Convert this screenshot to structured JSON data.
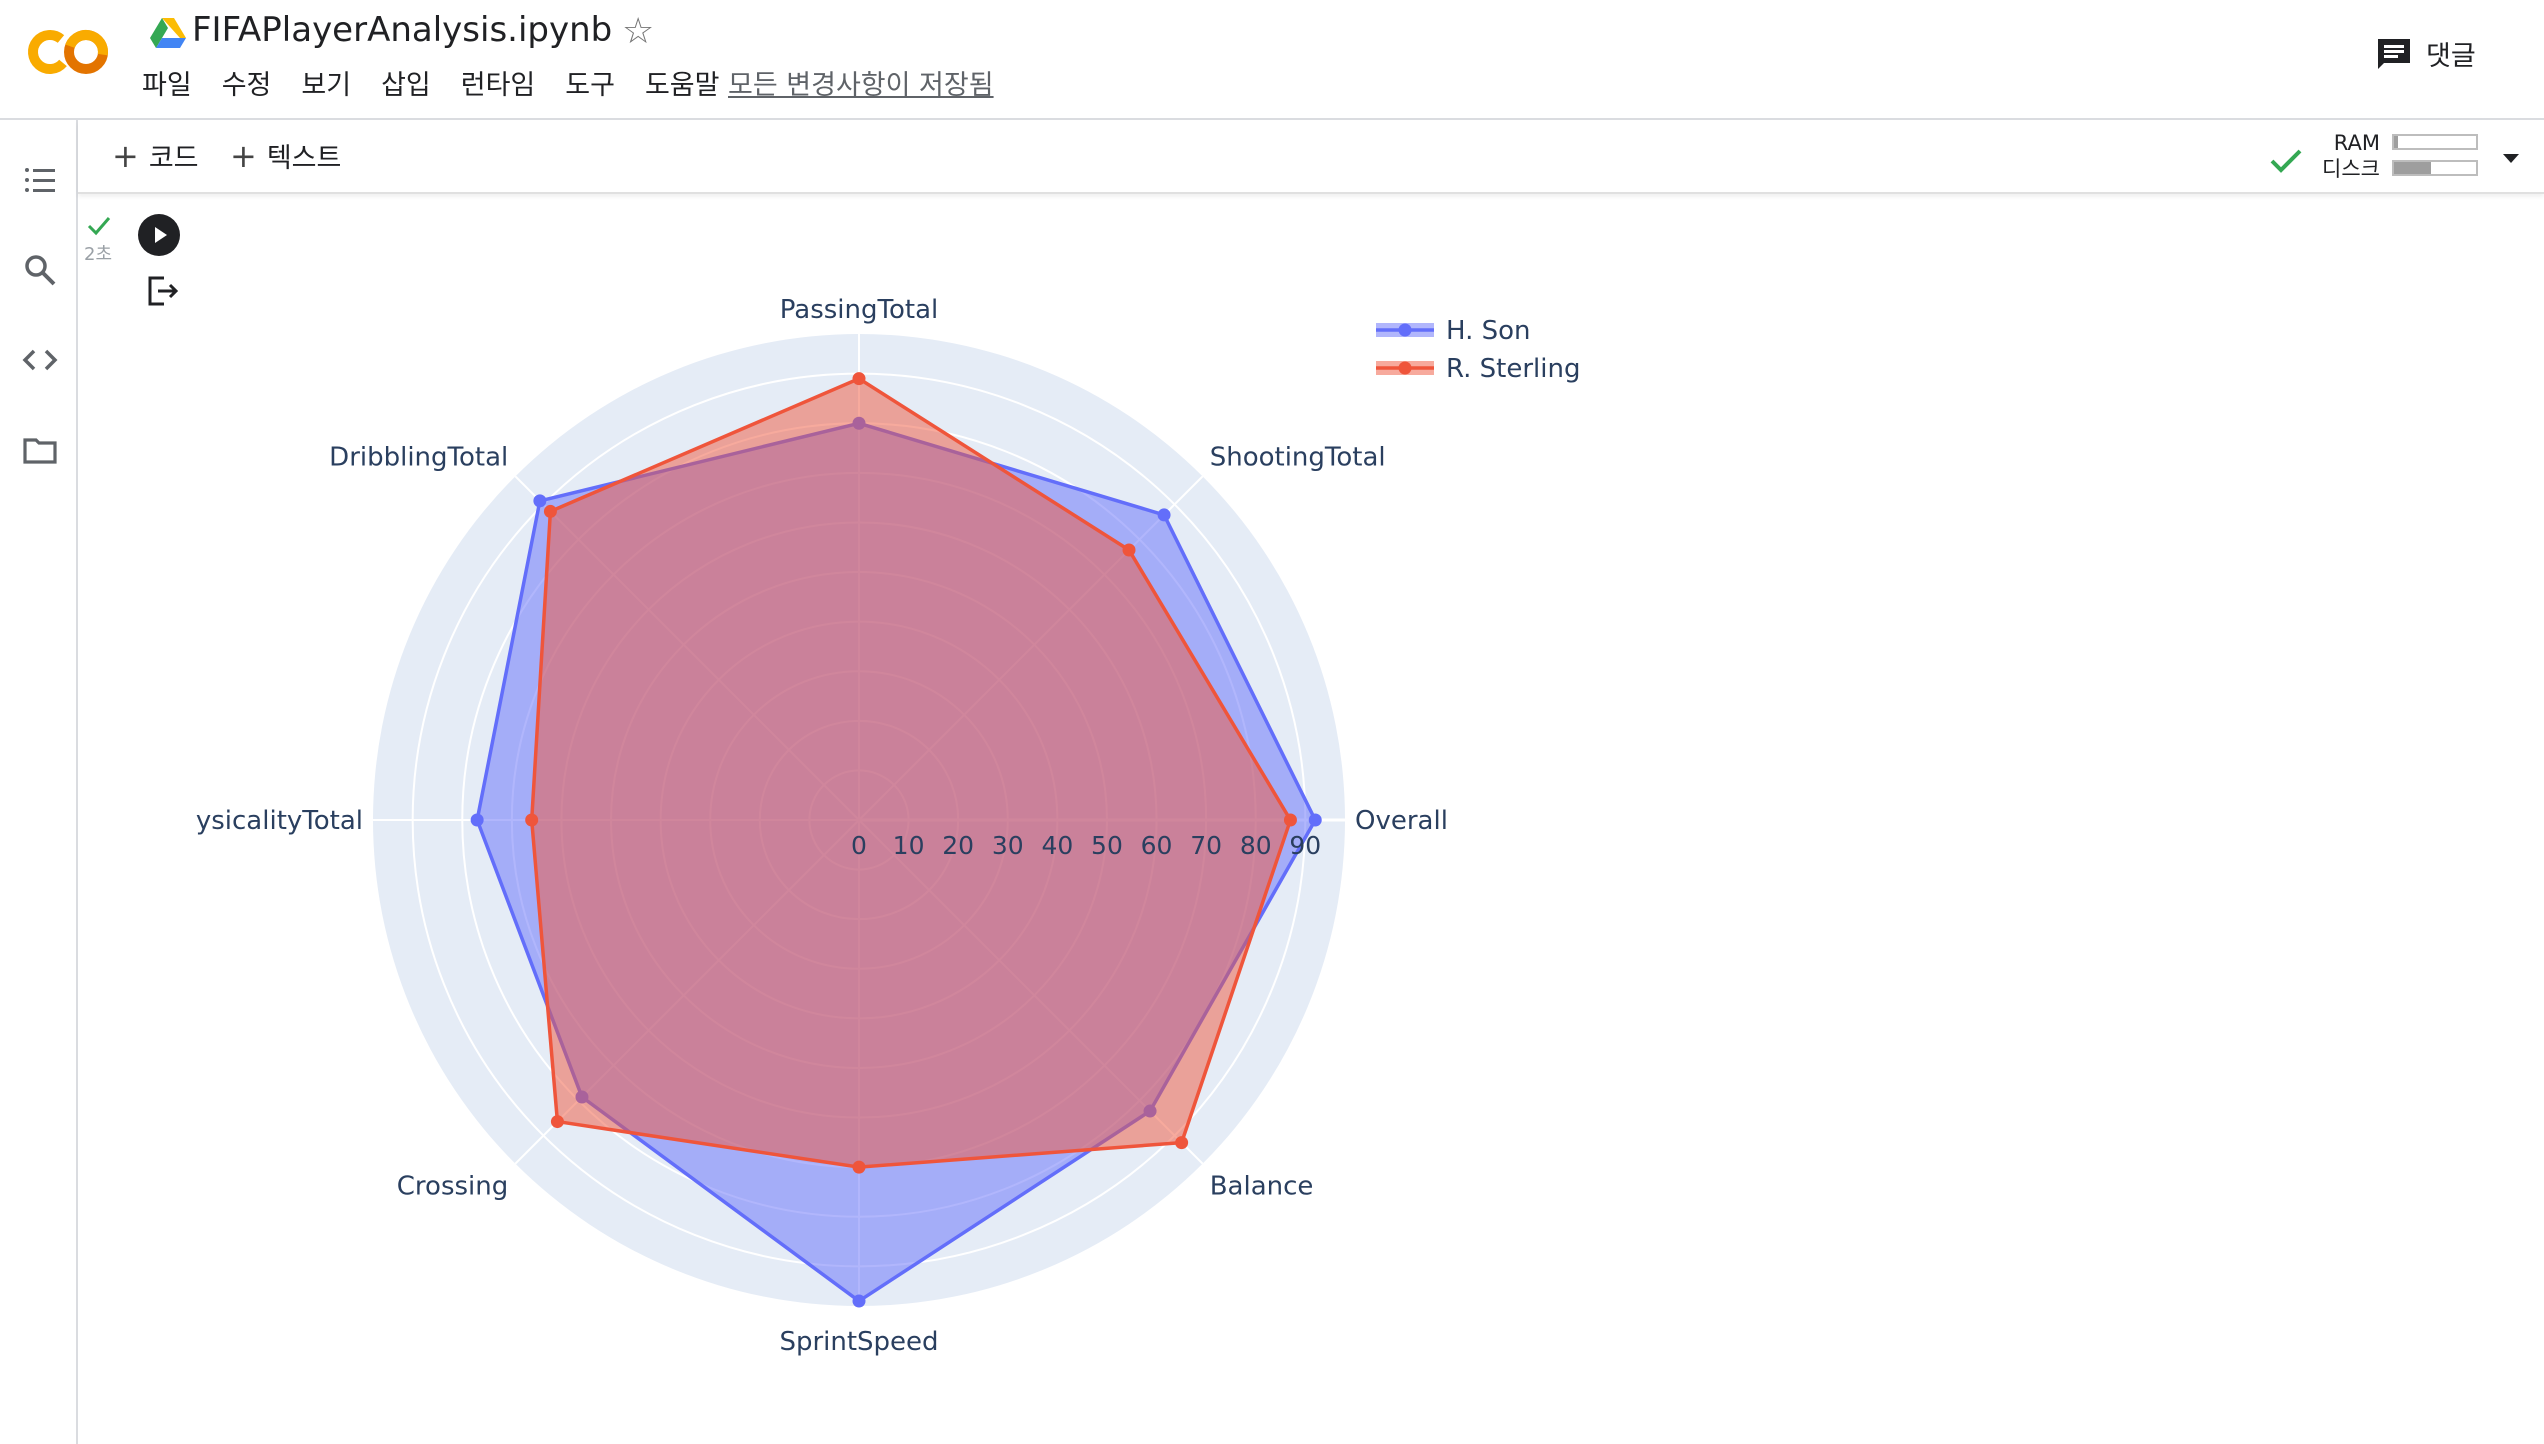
{
  "header": {
    "title": "FIFAPlayerAnalysis.ipynb",
    "menu": [
      "파일",
      "수정",
      "보기",
      "삽입",
      "런타임",
      "도구",
      "도움말"
    ],
    "save_status": "모든 변경사항이 저장됨",
    "comment_label": "댓글"
  },
  "toolbar": {
    "add_code": "코드",
    "add_text": "텍스트",
    "ram_label": "RAM",
    "disk_label": "디스크",
    "ram_usage": 0.05,
    "disk_usage": 0.45
  },
  "cell": {
    "exec_time": "2초"
  },
  "colors": {
    "son": "#636efa",
    "sterling": "#ef553b",
    "polar_bg": "#e5ecf6",
    "check_green": "#34a853"
  },
  "chart_data": {
    "type": "radar",
    "axes": [
      "Overall",
      "ShootingTotal",
      "PassingTotal",
      "DribblingTotal",
      "ysicalityTotal",
      "Crossing",
      "SprintSpeed",
      "Balance"
    ],
    "radial_ticks": [
      "0",
      "10",
      "20",
      "30",
      "40",
      "50",
      "60",
      "70",
      "80",
      "90"
    ],
    "radial_range": [
      0,
      98
    ],
    "series": [
      {
        "name": "H. Son",
        "values": [
          92,
          87,
          80,
          91,
          77,
          79,
          97,
          83
        ]
      },
      {
        "name": "R. Sterling",
        "values": [
          87,
          77,
          89,
          88,
          66,
          86,
          70,
          92
        ]
      }
    ],
    "legend_position": "top-right"
  }
}
